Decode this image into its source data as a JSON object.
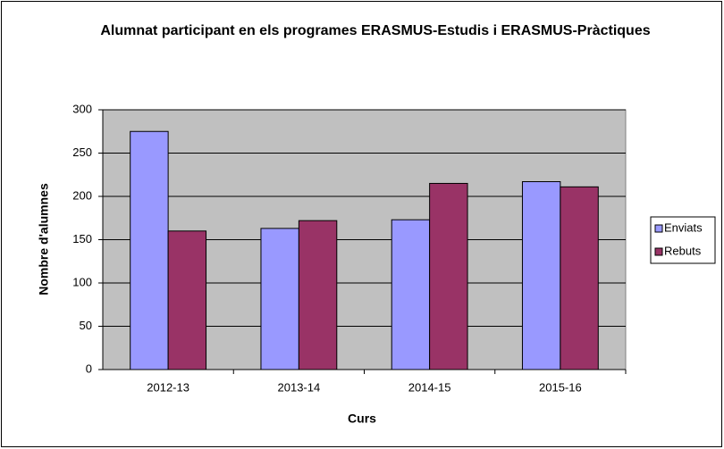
{
  "chart_data": {
    "type": "bar",
    "title": "Alumnat participant en els programes ERASMUS-Estudis i ERASMUS-Pràctiques",
    "x_label": "Curs",
    "y_label": "Nombre d'alumnes",
    "categories": [
      "2012-13",
      "2013-14",
      "2014-15",
      "2015-16"
    ],
    "series": [
      {
        "name": "Enviats",
        "color": "#9999ff",
        "values": [
          275,
          163,
          173,
          217
        ]
      },
      {
        "name": "Rebuts",
        "color": "#993366",
        "values": [
          160,
          172,
          215,
          211
        ]
      }
    ],
    "ylim": [
      0,
      300
    ],
    "yticks": [
      0,
      50,
      100,
      150,
      200,
      250,
      300
    ],
    "grid": true,
    "legend": "right",
    "plot_background": "#c0c0c0"
  }
}
